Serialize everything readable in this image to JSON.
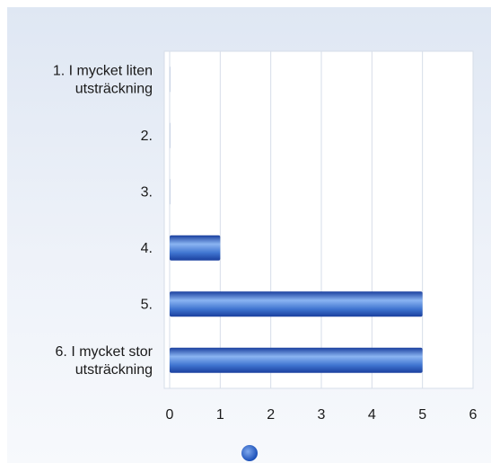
{
  "chart_data": {
    "type": "bar",
    "orientation": "horizontal",
    "categories": [
      [
        "1. I mycket liten",
        "utsträckning"
      ],
      [
        "2."
      ],
      [
        "3."
      ],
      [
        "4."
      ],
      [
        "5."
      ],
      [
        "6. I mycket stor",
        "utsträckning"
      ]
    ],
    "series": [
      {
        "values": [
          0,
          0,
          0,
          1,
          5,
          5
        ]
      }
    ],
    "xlim": [
      0,
      6
    ],
    "xticks": [
      "0",
      "1",
      "2",
      "3",
      "4",
      "5",
      "6"
    ],
    "grid": true,
    "legend": "bottom-center",
    "colors": {
      "bar_dark": "#1a3f9e",
      "bar_mid": "#4f86de",
      "bar_light": "#8ab4f2",
      "grid": "#d6dde8"
    }
  }
}
